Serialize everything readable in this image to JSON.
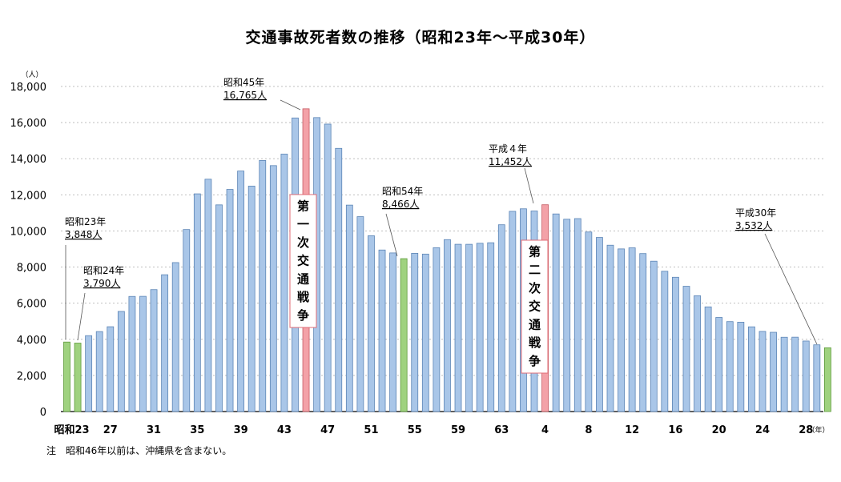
{
  "chart_data": {
    "type": "bar",
    "title": "交通事故死者数の推移（昭和23年〜平成30年）",
    "y_unit": "（人）",
    "x_unit": "（年）",
    "ylim": [
      0,
      18000
    ],
    "yticks": [
      "0",
      "2,000",
      "4,000",
      "6,000",
      "8,000",
      "10,000",
      "12,000",
      "14,000",
      "16,000",
      "18,000"
    ],
    "xtick_labels": [
      "昭和23",
      "27",
      "31",
      "35",
      "39",
      "43",
      "47",
      "51",
      "55",
      "59",
      "63",
      "4",
      "8",
      "12",
      "16",
      "20",
      "24",
      "28"
    ],
    "grid": true,
    "categories": [
      "昭和23",
      "昭和24",
      "昭和25",
      "昭和26",
      "昭和27",
      "昭和28",
      "昭和29",
      "昭和30",
      "昭和31",
      "昭和32",
      "昭和33",
      "昭和34",
      "昭和35",
      "昭和36",
      "昭和37",
      "昭和38",
      "昭和39",
      "昭和40",
      "昭和41",
      "昭和42",
      "昭和43",
      "昭和44",
      "昭和45",
      "昭和46",
      "昭和47",
      "昭和48",
      "昭和49",
      "昭和50",
      "昭和51",
      "昭和52",
      "昭和53",
      "昭和54",
      "昭和55",
      "昭和56",
      "昭和57",
      "昭和58",
      "昭和59",
      "昭和60",
      "昭和61",
      "昭和62",
      "昭和63",
      "平成元",
      "平成2",
      "平成3",
      "平成4",
      "平成5",
      "平成6",
      "平成7",
      "平成8",
      "平成9",
      "平成10",
      "平成11",
      "平成12",
      "平成13",
      "平成14",
      "平成15",
      "平成16",
      "平成17",
      "平成18",
      "平成19",
      "平成20",
      "平成21",
      "平成22",
      "平成23",
      "平成24",
      "平成25",
      "平成26",
      "平成27",
      "平成28",
      "平成29",
      "平成30"
    ],
    "values": [
      3848,
      3790,
      4202,
      4429,
      4696,
      5544,
      6374,
      6379,
      6751,
      7575,
      8248,
      10079,
      12055,
      12865,
      11445,
      12301,
      13318,
      12484,
      13904,
      13618,
      14256,
      16257,
      16765,
      16278,
      15918,
      14574,
      11432,
      10792,
      9734,
      8945,
      8783,
      8466,
      8760,
      8719,
      9073,
      9520,
      9262,
      9261,
      9317,
      9347,
      10344,
      11086,
      11227,
      11105,
      11452,
      10942,
      10649,
      10684,
      9942,
      9640,
      9211,
      9006,
      9066,
      8747,
      8326,
      7768,
      7436,
      6937,
      6415,
      5796,
      5209,
      4979,
      4948,
      4691,
      4438,
      4388,
      4113,
      4117,
      3904,
      3694,
      3532
    ],
    "highlights": {
      "green": [
        "昭和23",
        "昭和24",
        "昭和54",
        "平成30"
      ],
      "red": [
        "昭和45",
        "平成4"
      ]
    },
    "colors": {
      "bar": "#a9c6e8",
      "bar_stroke": "#5b84b5",
      "green": "#9fd27f",
      "green_stroke": "#5e9a3b",
      "red": "#f3a2a8",
      "red_stroke": "#c65a63",
      "grid": "#bfbfbf"
    },
    "annotations": [
      {
        "target": "昭和23",
        "line1": "昭和23年",
        "line2": "3,848人"
      },
      {
        "target": "昭和24",
        "line1": "昭和24年",
        "line2": "3,790人"
      },
      {
        "target": "昭和45",
        "line1": "昭和45年",
        "line2": "16,765人"
      },
      {
        "target": "昭和54",
        "line1": "昭和54年",
        "line2": "8,466人"
      },
      {
        "target": "平成4",
        "line1": "平成４年",
        "line2": "11,452人"
      },
      {
        "target": "平成30",
        "line1": "平成30年",
        "line2": "3,532人"
      }
    ],
    "periods": [
      {
        "target": "昭和45",
        "text": "第一次交通戦争"
      },
      {
        "target": "平成4",
        "text": "第二次交通戦争"
      }
    ]
  },
  "note": "注　昭和46年以前は、沖縄県を含まない。"
}
